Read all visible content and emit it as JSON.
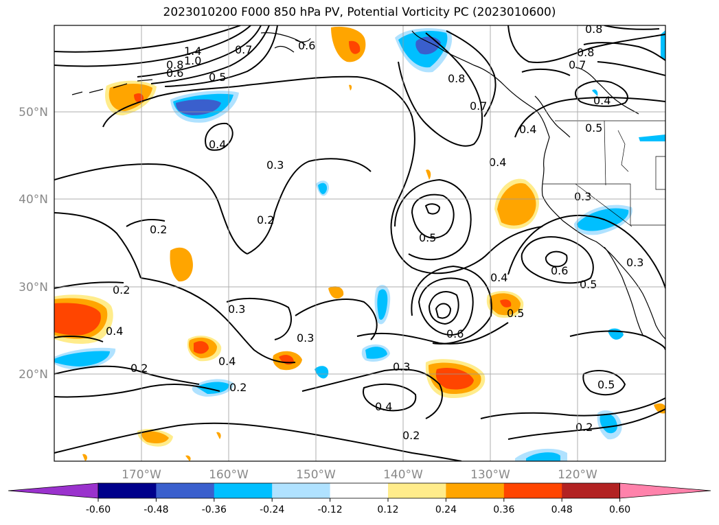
{
  "title": "2023010200 F000 850 hPa PV, Potential Vorticity PC (2023010600)",
  "map": {
    "lon_labels": [
      "170°W",
      "160°W",
      "150°W",
      "140°W",
      "130°W",
      "120°W"
    ],
    "lat_labels": [
      "50°N",
      "40°N",
      "30°N",
      "20°N"
    ]
  },
  "colorbar": {
    "ticks": [
      "-0.60",
      "-0.48",
      "-0.36",
      "-0.24",
      "-0.12",
      "0.12",
      "0.24",
      "0.36",
      "0.48",
      "0.60"
    ],
    "colors": [
      "#9a32cd",
      "#00008b",
      "#3a5fcd",
      "#00bfff",
      "#b0e2ff",
      "#ffffff",
      "#ffec8b",
      "#ffa500",
      "#ff4500",
      "#b22222",
      "#ff82ab"
    ]
  },
  "contour_labels": [
    "1.4",
    "1.0",
    "0.8",
    "0.6",
    "0.5",
    "0.7",
    "0.6",
    "0.8",
    "0.8",
    "0.8",
    "0.7",
    "0.7",
    "0.4",
    "0.4",
    "0.5",
    "0.4",
    "0.4",
    "0.3",
    "0.2",
    "0.2",
    "0.5",
    "0.3",
    "0.3",
    "0.6",
    "0.5",
    "0.2",
    "0.3",
    "0.3",
    "0.4",
    "0.6",
    "0.5",
    "0.4",
    "0.2",
    "0.4",
    "0.2",
    "0.3",
    "0.4",
    "0.5",
    "0.2",
    "0.2"
  ]
}
